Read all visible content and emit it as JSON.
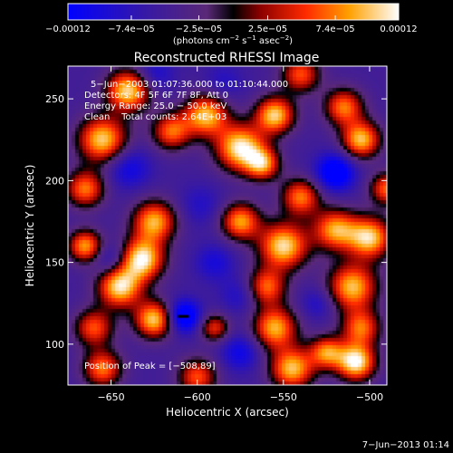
{
  "chart_data": {
    "type": "heatmap",
    "title": "Reconstructed RHESSI Image",
    "xlabel": "Heliocentric X (arcsec)",
    "ylabel": "Heliocentric Y (arcsec)",
    "xlim": [
      -675,
      -490
    ],
    "ylim": [
      75,
      270
    ],
    "xticks": [
      -650,
      -600,
      -550,
      -500
    ],
    "xtick_labels": [
      "−650",
      "−600",
      "−550",
      "−500"
    ],
    "yticks": [
      100,
      150,
      200,
      250
    ],
    "ytick_labels": [
      "100",
      "150",
      "200",
      "250"
    ],
    "colorbar": {
      "ticks": [
        -0.00012,
        -7.4e-05,
        -2.5e-05,
        2.5e-05,
        7.4e-05,
        0.00012
      ],
      "tick_labels": [
        "−0.00012",
        "−7.4e−05",
        "−2.5e−05",
        "2.5e−05",
        "7.4e−05",
        "0.00012"
      ],
      "units_prefix": "(photons cm",
      "units_sup1": "−2",
      "units_mid": " s",
      "units_sup2": "−1",
      "units_mid2": " asec",
      "units_sup3": "−2",
      "units_suffix": ")"
    },
    "annotations": [
      "5−Jun−2003 01:07:36.000 to 01:10:44.000",
      "Detectors: 4F 5F 6F 7F 8F, Att 0",
      "Energy Range: 25.0 − 50.0 keV",
      "Clean    Total counts: 2.64E+03"
    ],
    "peak_label": "Position of Peak = [−508,89]",
    "peak": {
      "x": -508,
      "y": 89
    },
    "timestamp": "7−Jun−2013 01:14",
    "blobs": [
      {
        "x": -640,
        "y": 255,
        "v": 0.9,
        "s": 9
      },
      {
        "x": -655,
        "y": 225,
        "v": 0.85,
        "s": 10
      },
      {
        "x": -665,
        "y": 195,
        "v": 0.6,
        "s": 8
      },
      {
        "x": -640,
        "y": 208,
        "v": -0.6,
        "s": 9
      },
      {
        "x": -625,
        "y": 175,
        "v": 0.75,
        "s": 9
      },
      {
        "x": -615,
        "y": 230,
        "v": 0.55,
        "s": 8
      },
      {
        "x": -632,
        "y": 152,
        "v": 0.95,
        "s": 9
      },
      {
        "x": -645,
        "y": 135,
        "v": 0.9,
        "s": 9
      },
      {
        "x": -665,
        "y": 160,
        "v": 0.7,
        "s": 7
      },
      {
        "x": -650,
        "y": 152,
        "v": -0.55,
        "s": 7
      },
      {
        "x": -625,
        "y": 115,
        "v": 0.85,
        "s": 8
      },
      {
        "x": -660,
        "y": 110,
        "v": 0.5,
        "s": 8
      },
      {
        "x": -655,
        "y": 85,
        "v": 0.6,
        "s": 8
      },
      {
        "x": -608,
        "y": 117,
        "v": -1.0,
        "s": 7
      },
      {
        "x": -590,
        "y": 150,
        "v": -0.5,
        "s": 8
      },
      {
        "x": -598,
        "y": 185,
        "v": -0.4,
        "s": 9
      },
      {
        "x": -575,
        "y": 95,
        "v": -0.6,
        "s": 8
      },
      {
        "x": -595,
        "y": 240,
        "v": 0.8,
        "s": 9
      },
      {
        "x": -575,
        "y": 220,
        "v": 0.95,
        "s": 10
      },
      {
        "x": -555,
        "y": 240,
        "v": 0.85,
        "s": 8
      },
      {
        "x": -562,
        "y": 210,
        "v": 0.6,
        "s": 7
      },
      {
        "x": -575,
        "y": 175,
        "v": 0.7,
        "s": 8
      },
      {
        "x": -550,
        "y": 160,
        "v": 0.9,
        "s": 10
      },
      {
        "x": -540,
        "y": 190,
        "v": 0.6,
        "s": 8
      },
      {
        "x": -560,
        "y": 135,
        "v": 0.55,
        "s": 8
      },
      {
        "x": -555,
        "y": 110,
        "v": 0.75,
        "s": 9
      },
      {
        "x": -545,
        "y": 85,
        "v": 0.8,
        "s": 9
      },
      {
        "x": -520,
        "y": 205,
        "v": -0.95,
        "s": 8
      },
      {
        "x": -515,
        "y": 245,
        "v": 0.6,
        "s": 8
      },
      {
        "x": -505,
        "y": 225,
        "v": 0.8,
        "s": 8
      },
      {
        "x": -520,
        "y": 170,
        "v": 0.7,
        "s": 9
      },
      {
        "x": -500,
        "y": 165,
        "v": 0.85,
        "s": 9
      },
      {
        "x": -510,
        "y": 135,
        "v": 0.8,
        "s": 10
      },
      {
        "x": -530,
        "y": 125,
        "v": -0.45,
        "s": 7
      },
      {
        "x": -505,
        "y": 110,
        "v": 0.55,
        "s": 8
      },
      {
        "x": -508,
        "y": 89,
        "v": 1.0,
        "s": 8
      },
      {
        "x": -525,
        "y": 95,
        "v": 0.6,
        "s": 7
      },
      {
        "x": -490,
        "y": 195,
        "v": 0.55,
        "s": 7
      },
      {
        "x": -600,
        "y": 80,
        "v": 0.5,
        "s": 8
      },
      {
        "x": -625,
        "y": 265,
        "v": -0.5,
        "s": 8
      },
      {
        "x": -585,
        "y": 260,
        "v": -0.4,
        "s": 8
      },
      {
        "x": -540,
        "y": 265,
        "v": 0.5,
        "s": 8
      },
      {
        "x": -575,
        "y": 130,
        "v": -0.45,
        "s": 8
      },
      {
        "x": -590,
        "y": 110,
        "v": 0.4,
        "s": 6
      }
    ]
  }
}
